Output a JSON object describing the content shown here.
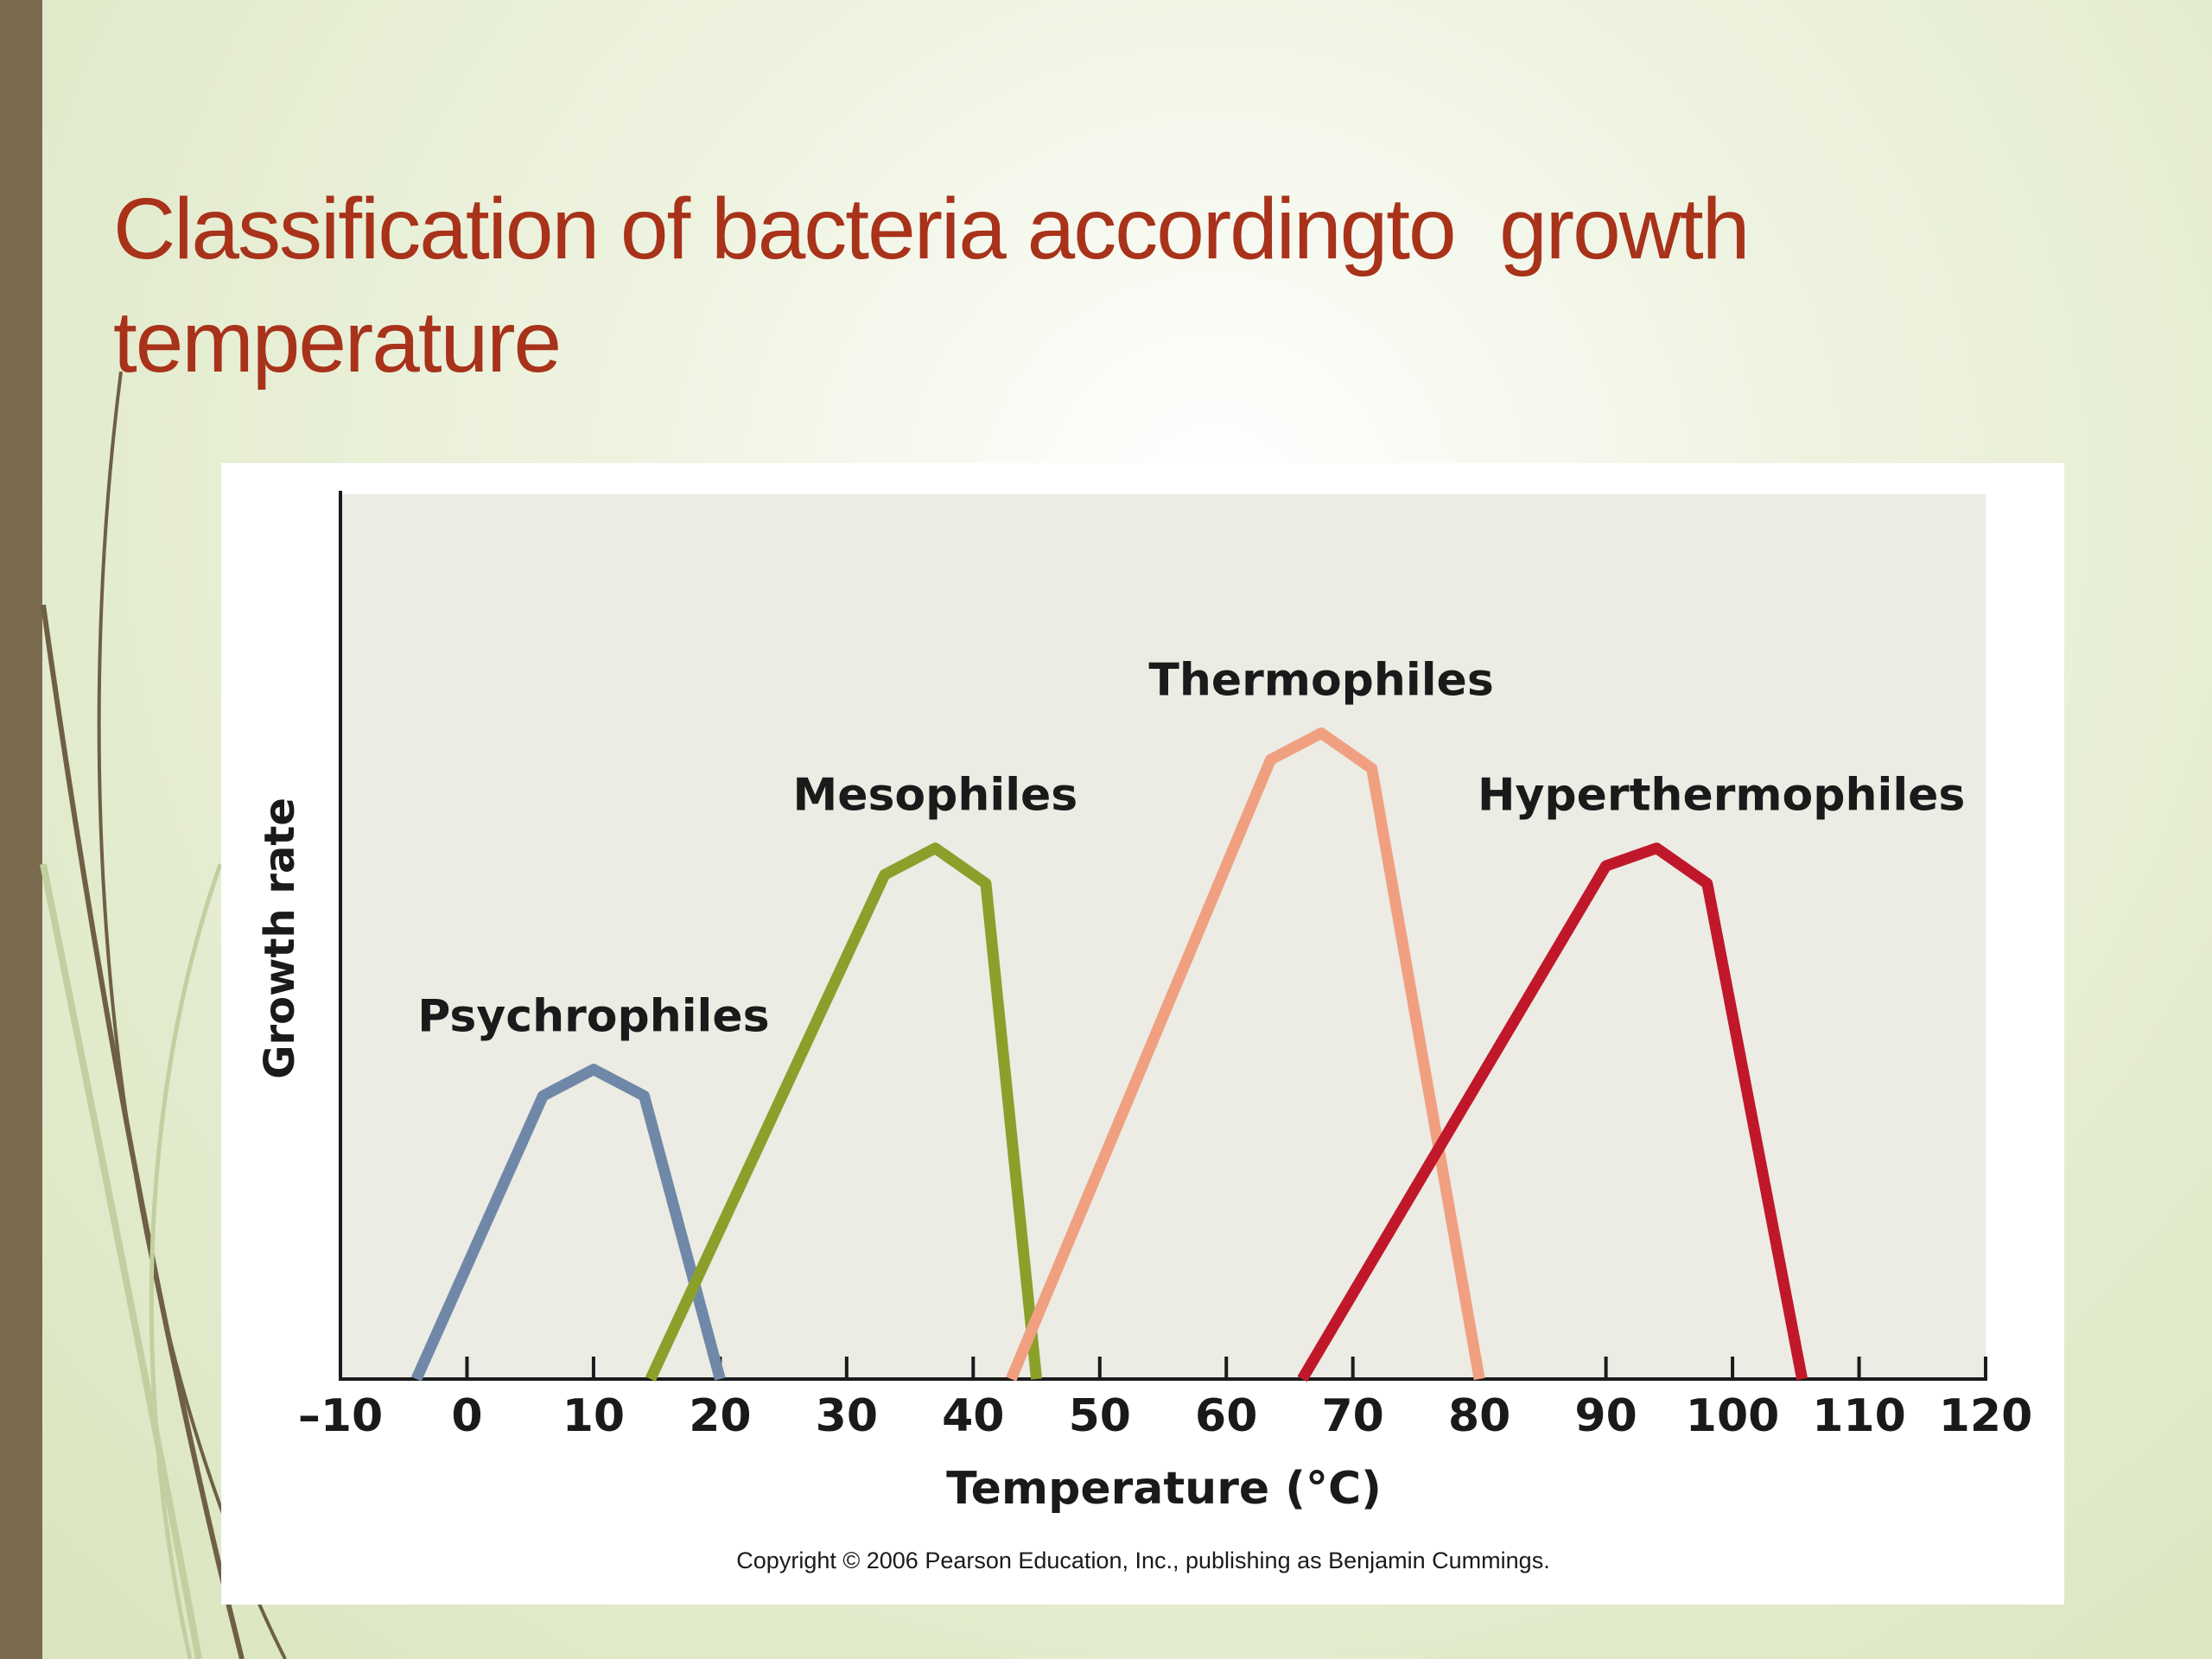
{
  "chart_data": {
    "type": "line",
    "title": "Classification of bacteria accordingto  growth temperature",
    "x_label": "Temperature (°C)",
    "y_label": "Growth rate",
    "note": "Copyright © 2006 Pearson Education, Inc., publishing as Benjamin Cummings.",
    "xlim": [
      -10,
      120
    ],
    "xticks": [
      {
        "value": -10,
        "label": "–10"
      },
      0,
      10,
      20,
      30,
      40,
      50,
      60,
      70,
      80,
      90,
      100,
      110,
      120
    ],
    "ylim": [
      0,
      100
    ],
    "series": [
      {
        "name": "Psychrophiles",
        "color": "#7088a8",
        "x": [
          -4,
          6,
          10,
          14,
          20
        ],
        "values": [
          0,
          32,
          35,
          32,
          0
        ]
      },
      {
        "name": "Mesophiles",
        "color": "#8aa02a",
        "x": [
          14.5,
          33,
          37,
          41,
          45
        ],
        "values": [
          0,
          57,
          60,
          56,
          0
        ]
      },
      {
        "name": "Thermophiles",
        "color": "#f0a080",
        "x": [
          43,
          63.5,
          67.5,
          71.5,
          80
        ],
        "values": [
          0,
          70,
          73,
          69,
          0
        ]
      },
      {
        "name": "Hyperthermophiles",
        "color": "#c0182a",
        "x": [
          66,
          90,
          94,
          98,
          105.5
        ],
        "values": [
          0,
          58,
          60,
          56,
          0
        ]
      }
    ]
  }
}
